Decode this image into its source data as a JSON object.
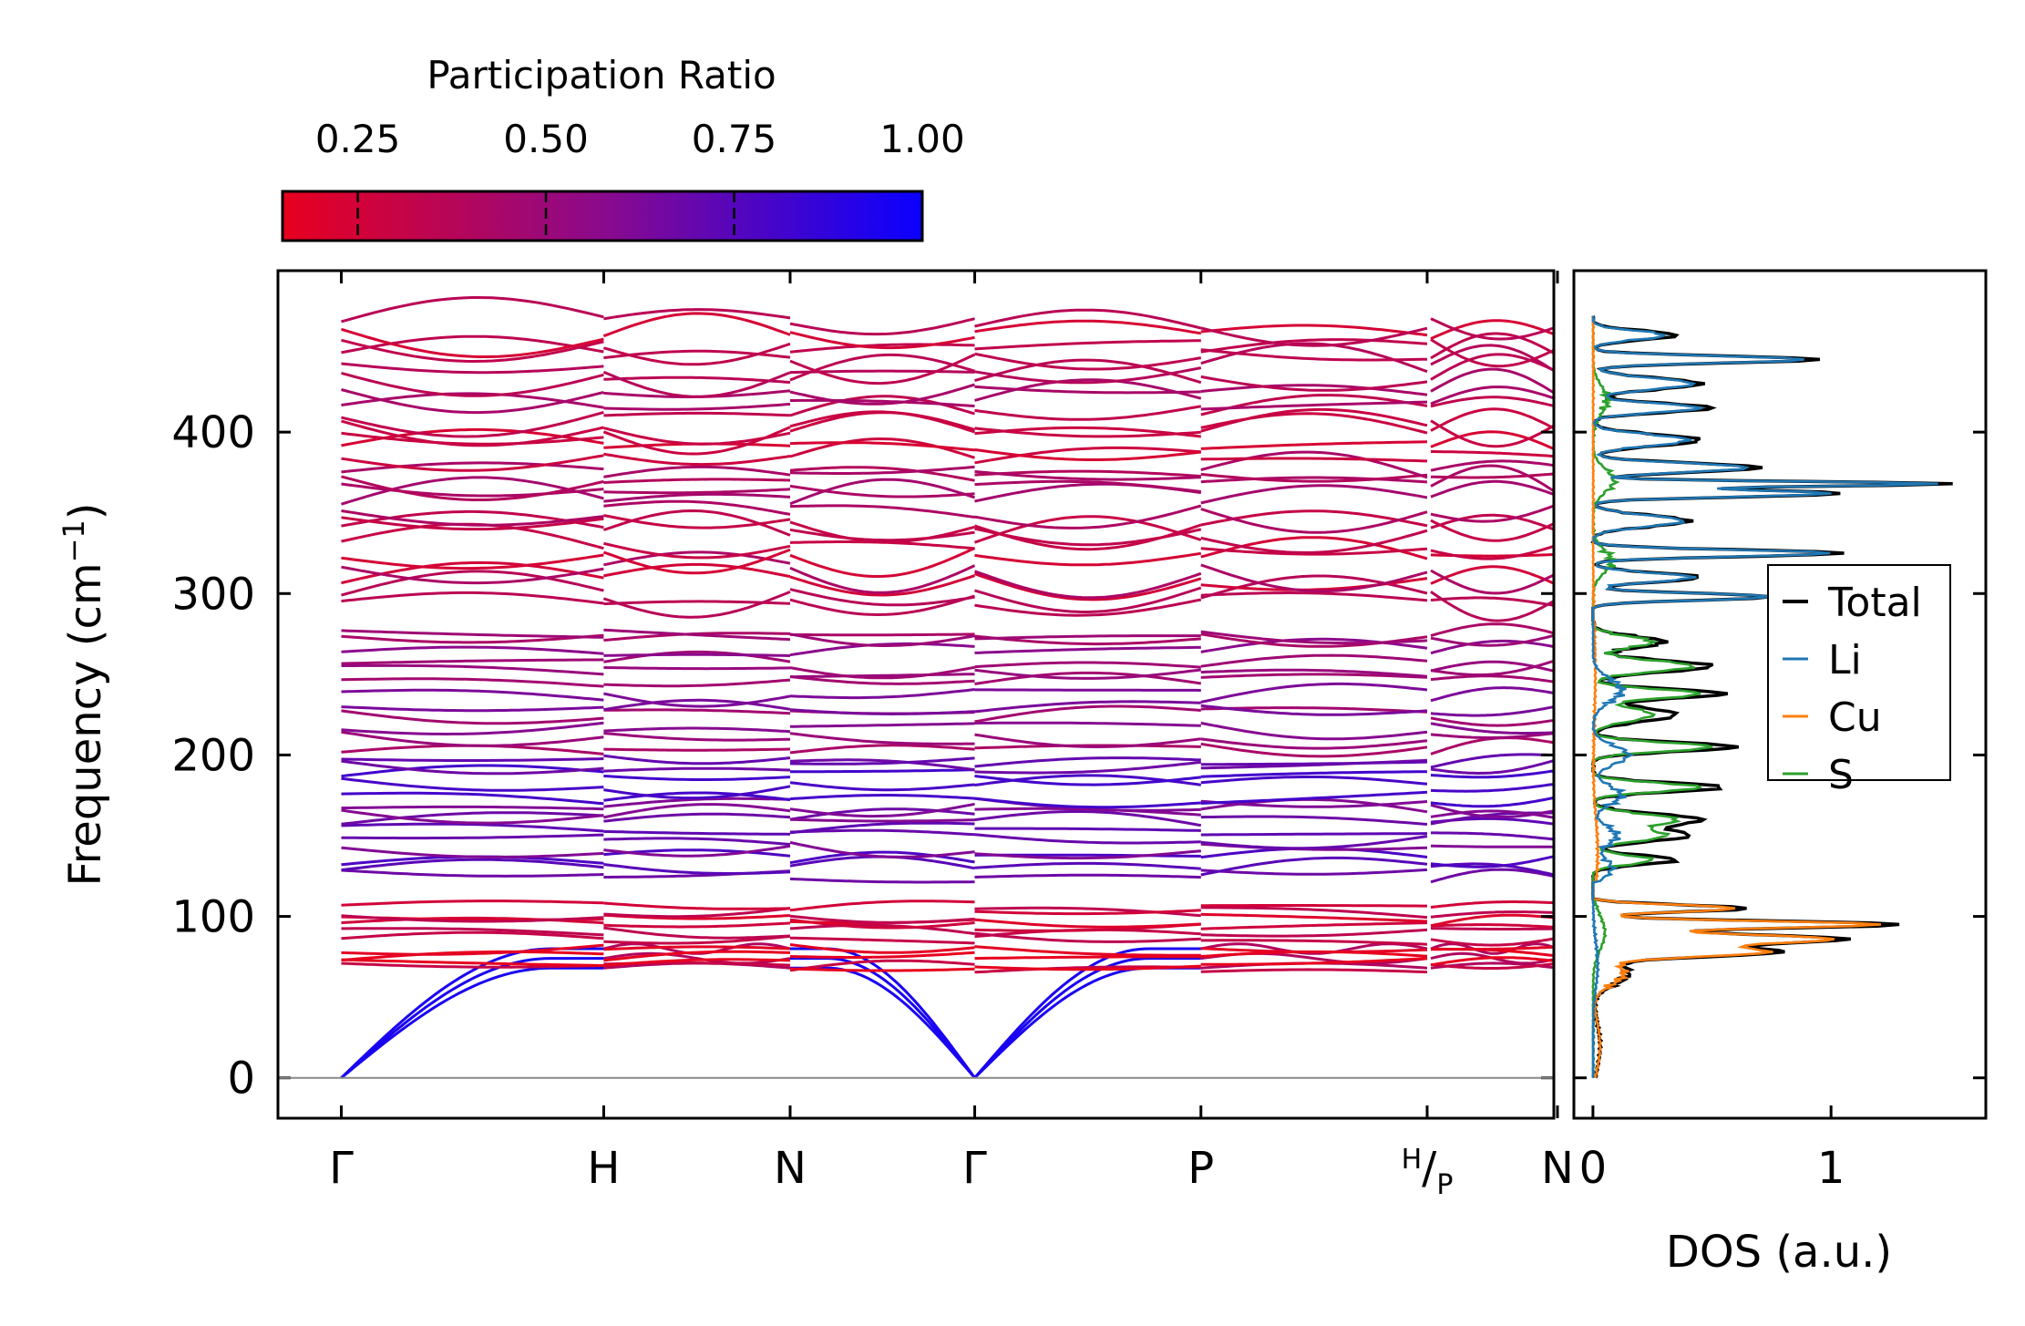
{
  "chart_data": [
    {
      "type": "line",
      "name": "phonon-band-structure",
      "ylabel": "Frequency (cm",
      "ylabel_sup": "−1",
      "ylabel_close": ")",
      "ylim": [
        -25,
        500
      ],
      "yticks": [
        {
          "value": 0,
          "label": "0"
        },
        {
          "value": 100,
          "label": "100"
        },
        {
          "value": 200,
          "label": "200"
        },
        {
          "value": 300,
          "label": "300"
        },
        {
          "value": 400,
          "label": "400"
        }
      ],
      "xlim": [
        -0.35,
        6.7
      ],
      "path_labels": [
        {
          "x": 0,
          "label": "Γ"
        },
        {
          "x": 1.45,
          "label": "H"
        },
        {
          "x": 2.48,
          "label": "N"
        },
        {
          "x": 3.5,
          "label": "Γ"
        },
        {
          "x": 4.75,
          "label": "P"
        },
        {
          "x": 6.0,
          "label": "H",
          "sub": "/",
          "tail": "P"
        },
        {
          "x": 6.72,
          "label": "N"
        }
      ],
      "segments": [
        [
          0,
          1.45
        ],
        [
          1.45,
          2.48
        ],
        [
          2.48,
          3.5
        ],
        [
          3.5,
          4.75
        ],
        [
          4.75,
          6.0
        ],
        [
          6.02,
          6.72
        ]
      ],
      "colorbar": {
        "title": "Participation Ratio",
        "range": [
          0.15,
          1.0
        ],
        "ticks": [
          {
            "value": 0.25,
            "label": "0.25"
          },
          {
            "value": 0.5,
            "label": "0.50"
          },
          {
            "value": 0.75,
            "label": "0.75"
          },
          {
            "value": 1.0,
            "label": "1.00"
          }
        ],
        "color_low": "#e8001e",
        "color_mid": "#8b0a8c",
        "color_high": "#0a00ff"
      },
      "acoustic_branches": {
        "gamma_value": 0,
        "zone_edge_values": [
          68,
          74,
          80
        ]
      },
      "band_groups": [
        {
          "range": [
            65,
            110
          ],
          "count": 10,
          "participation": 0.22
        },
        {
          "range": [
            122,
            200
          ],
          "count": 14,
          "participation": 0.7
        },
        {
          "range": [
            200,
            280
          ],
          "count": 12,
          "participation": 0.55
        },
        {
          "range": [
            292,
            470
          ],
          "count": 26,
          "participation": 0.35
        }
      ]
    },
    {
      "type": "line",
      "name": "density-of-states",
      "xlabel": "DOS (a.u.)",
      "xlim": [
        -0.08,
        1.65
      ],
      "xticks": [
        {
          "value": 0,
          "label": "0"
        },
        {
          "value": 1,
          "label": "1"
        }
      ],
      "ylim": [
        -25,
        500
      ],
      "series": [
        {
          "name": "Total",
          "color": "#000000",
          "peaks": [
            [
              20,
              0.03,
              20
            ],
            [
              65,
              0.15,
              10
            ],
            [
              78,
              0.75,
              4
            ],
            [
              86,
              1.05,
              4
            ],
            [
              95,
              1.3,
              3
            ],
            [
              105,
              0.65,
              3
            ],
            [
              135,
              0.35,
              4
            ],
            [
              150,
              0.4,
              5
            ],
            [
              160,
              0.45,
              5
            ],
            [
              180,
              0.55,
              4
            ],
            [
              205,
              0.6,
              4
            ],
            [
              225,
              0.35,
              6
            ],
            [
              238,
              0.55,
              4
            ],
            [
              255,
              0.5,
              5
            ],
            [
              270,
              0.3,
              5
            ],
            [
              298,
              0.75,
              3
            ],
            [
              310,
              0.45,
              4
            ],
            [
              325,
              1.05,
              3
            ],
            [
              345,
              0.4,
              5
            ],
            [
              362,
              1.05,
              3
            ],
            [
              368,
              1.5,
              2
            ],
            [
              378,
              0.7,
              4
            ],
            [
              395,
              0.45,
              5
            ],
            [
              415,
              0.5,
              4
            ],
            [
              430,
              0.45,
              5
            ],
            [
              445,
              0.95,
              3
            ],
            [
              460,
              0.35,
              4
            ]
          ]
        },
        {
          "name": "Li",
          "color": "#1f77b4",
          "peaks": [
            [
              70,
              0.02,
              20
            ],
            [
              130,
              0.08,
              8
            ],
            [
              150,
              0.1,
              8
            ],
            [
              175,
              0.12,
              8
            ],
            [
              200,
              0.15,
              8
            ],
            [
              240,
              0.12,
              10
            ],
            [
              298,
              0.75,
              3
            ],
            [
              310,
              0.42,
              4
            ],
            [
              325,
              1.0,
              3
            ],
            [
              345,
              0.38,
              5
            ],
            [
              362,
              1.0,
              3
            ],
            [
              368,
              1.45,
              2
            ],
            [
              378,
              0.65,
              4
            ],
            [
              395,
              0.4,
              5
            ],
            [
              415,
              0.45,
              4
            ],
            [
              430,
              0.42,
              5
            ],
            [
              445,
              0.9,
              3
            ],
            [
              460,
              0.3,
              4
            ]
          ]
        },
        {
          "name": "Cu",
          "color": "#ff7f0e",
          "peaks": [
            [
              20,
              0.03,
              20
            ],
            [
              65,
              0.13,
              10
            ],
            [
              78,
              0.7,
              4
            ],
            [
              86,
              1.0,
              4
            ],
            [
              95,
              1.2,
              3
            ],
            [
              105,
              0.6,
              3
            ],
            [
              140,
              0.02,
              30
            ],
            [
              250,
              0.01,
              40
            ]
          ]
        },
        {
          "name": "S",
          "color": "#2ca02c",
          "peaks": [
            [
              90,
              0.05,
              15
            ],
            [
              135,
              0.25,
              4
            ],
            [
              150,
              0.3,
              5
            ],
            [
              160,
              0.35,
              5
            ],
            [
              180,
              0.45,
              4
            ],
            [
              205,
              0.5,
              4
            ],
            [
              225,
              0.25,
              6
            ],
            [
              238,
              0.45,
              4
            ],
            [
              255,
              0.42,
              5
            ],
            [
              270,
              0.25,
              5
            ],
            [
              320,
              0.08,
              10
            ],
            [
              370,
              0.09,
              10
            ],
            [
              420,
              0.06,
              12
            ]
          ]
        }
      ],
      "legend_position": "center-right"
    }
  ]
}
